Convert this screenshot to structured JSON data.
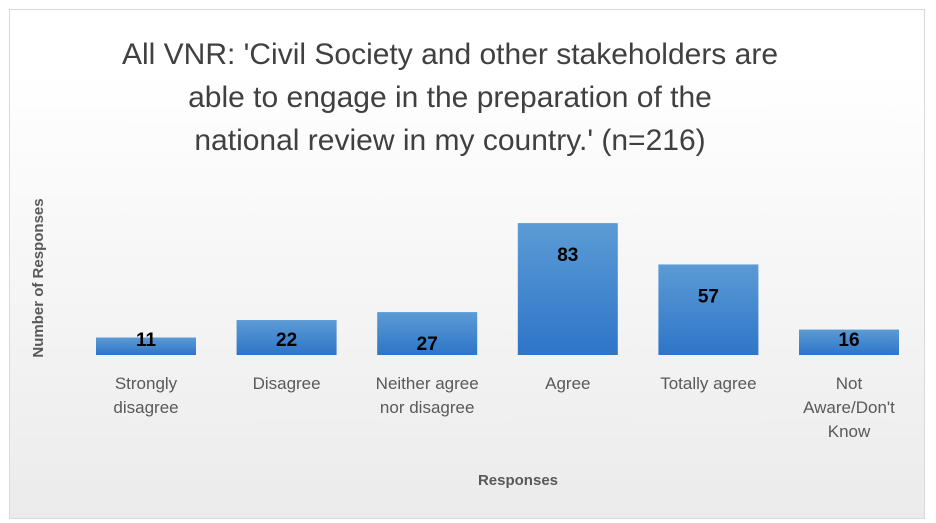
{
  "chart_data": {
    "type": "bar",
    "title": "All VNR: 'Civil Society and other stakeholders are able to engage in the preparation of the national review in my country.' (n=216)",
    "title_lines": [
      "All VNR: 'Civil Society and other stakeholders are",
      "able to engage in the preparation of the",
      "national review in my country.' (n=216)"
    ],
    "xlabel": "Responses",
    "ylabel": "Number of Responses",
    "categories": [
      "Strongly disagree",
      "Disagree",
      "Neither agree nor disagree",
      "Agree",
      "Totally agree",
      "Not Aware/Don't Know"
    ],
    "category_lines": [
      "Strongly\ndisagree",
      "Disagree",
      "Neither agree\nnor disagree",
      "Agree",
      "Totally agree",
      "Not\nAware/Don't\nKnow"
    ],
    "values": [
      11,
      22,
      27,
      83,
      57,
      16
    ],
    "ylim": [
      0,
      90
    ],
    "grid": false,
    "legend": "none",
    "colors": {
      "bar_top": "#5b9bd5",
      "bar_bottom": "#2e75c8",
      "label": "#000000"
    }
  }
}
